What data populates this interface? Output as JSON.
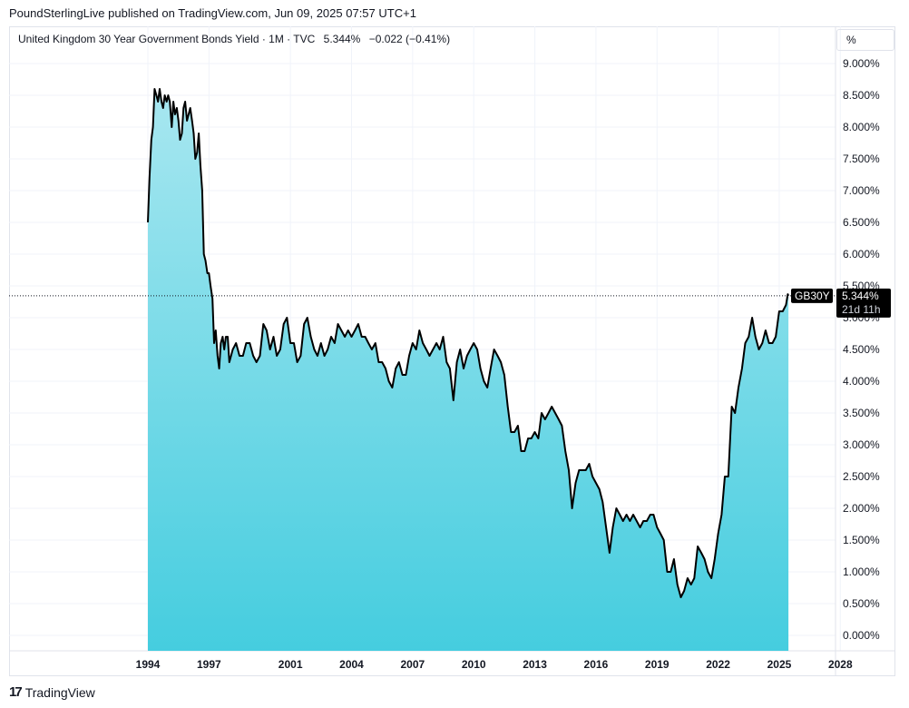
{
  "header": {
    "publisher_line": "PoundSterlingLive published on TradingView.com, Jun 09, 2025 07:57 UTC+1"
  },
  "legend": {
    "title": "United Kingdom 30 Year Government Bonds Yield · 1M · TVC",
    "last": "5.344%",
    "change": "−0.022 (−0.41%)"
  },
  "axis_unit": "%",
  "price_tag": {
    "symbol": "GB30Y",
    "value": "5.344%",
    "countdown": "21d 11h"
  },
  "footer": {
    "brand": "TradingView",
    "icon": "tradingview-logo-icon"
  },
  "colors": {
    "line": "#000000",
    "fill_top": "#a8e7f0",
    "fill_bottom": "#45cddf",
    "tag": "#000000"
  },
  "chart_data": {
    "type": "area",
    "x_ticks": [
      "1994",
      "1997",
      "2001",
      "2004",
      "2007",
      "2010",
      "2013",
      "2016",
      "2019",
      "2022",
      "2025",
      "2028"
    ],
    "y_ticks": [
      "0.000%",
      "0.500%",
      "1.000%",
      "1.500%",
      "2.000%",
      "2.500%",
      "3.000%",
      "3.500%",
      "4.000%",
      "4.500%",
      "5.000%",
      "5.500%",
      "6.000%",
      "6.500%",
      "7.000%",
      "7.500%",
      "8.000%",
      "8.500%",
      "9.000%"
    ],
    "ylim": [
      0,
      9
    ],
    "xlim": [
      1993.2,
      2029.0
    ],
    "grid": true,
    "current_value": 5.344,
    "series": [
      {
        "points": [
          [
            1994.0,
            6.5
          ],
          [
            1994.08,
            7.2
          ],
          [
            1994.17,
            7.8
          ],
          [
            1994.25,
            8.0
          ],
          [
            1994.33,
            8.6
          ],
          [
            1994.42,
            8.5
          ],
          [
            1994.5,
            8.4
          ],
          [
            1994.58,
            8.6
          ],
          [
            1994.67,
            8.4
          ],
          [
            1994.75,
            8.3
          ],
          [
            1994.83,
            8.5
          ],
          [
            1994.92,
            8.4
          ],
          [
            1995.0,
            8.5
          ],
          [
            1995.08,
            8.4
          ],
          [
            1995.17,
            8.0
          ],
          [
            1995.25,
            8.4
          ],
          [
            1995.33,
            8.2
          ],
          [
            1995.42,
            8.3
          ],
          [
            1995.5,
            8.1
          ],
          [
            1995.58,
            7.8
          ],
          [
            1995.67,
            7.9
          ],
          [
            1995.75,
            8.3
          ],
          [
            1995.83,
            8.4
          ],
          [
            1995.92,
            8.1
          ],
          [
            1996.0,
            8.2
          ],
          [
            1996.08,
            8.3
          ],
          [
            1996.17,
            8.1
          ],
          [
            1996.25,
            7.9
          ],
          [
            1996.33,
            7.5
          ],
          [
            1996.42,
            7.6
          ],
          [
            1996.5,
            7.9
          ],
          [
            1996.58,
            7.4
          ],
          [
            1996.67,
            7.0
          ],
          [
            1996.75,
            6.0
          ],
          [
            1996.83,
            5.9
          ],
          [
            1996.92,
            5.7
          ],
          [
            1997.0,
            5.7
          ],
          [
            1997.08,
            5.5
          ],
          [
            1997.17,
            5.3
          ],
          [
            1997.25,
            4.6
          ],
          [
            1997.33,
            4.8
          ],
          [
            1997.42,
            4.4
          ],
          [
            1997.5,
            4.2
          ],
          [
            1997.58,
            4.6
          ],
          [
            1997.67,
            4.7
          ],
          [
            1997.75,
            4.5
          ],
          [
            1997.83,
            4.7
          ],
          [
            1997.92,
            4.7
          ],
          [
            1998.0,
            4.3
          ],
          [
            1998.17,
            4.5
          ],
          [
            1998.33,
            4.6
          ],
          [
            1998.5,
            4.4
          ],
          [
            1998.67,
            4.4
          ],
          [
            1998.83,
            4.6
          ],
          [
            1999.0,
            4.6
          ],
          [
            1999.17,
            4.4
          ],
          [
            1999.33,
            4.3
          ],
          [
            1999.5,
            4.4
          ],
          [
            1999.67,
            4.9
          ],
          [
            1999.83,
            4.8
          ],
          [
            2000.0,
            4.5
          ],
          [
            2000.17,
            4.7
          ],
          [
            2000.33,
            4.4
          ],
          [
            2000.5,
            4.5
          ],
          [
            2000.67,
            4.9
          ],
          [
            2000.83,
            5.0
          ],
          [
            2001.0,
            4.6
          ],
          [
            2001.17,
            4.6
          ],
          [
            2001.33,
            4.3
          ],
          [
            2001.5,
            4.4
          ],
          [
            2001.67,
            4.9
          ],
          [
            2001.83,
            5.0
          ],
          [
            2002.0,
            4.7
          ],
          [
            2002.17,
            4.5
          ],
          [
            2002.33,
            4.4
          ],
          [
            2002.5,
            4.6
          ],
          [
            2002.67,
            4.4
          ],
          [
            2002.83,
            4.5
          ],
          [
            2003.0,
            4.7
          ],
          [
            2003.17,
            4.6
          ],
          [
            2003.33,
            4.9
          ],
          [
            2003.5,
            4.8
          ],
          [
            2003.67,
            4.7
          ],
          [
            2003.83,
            4.8
          ],
          [
            2004.0,
            4.7
          ],
          [
            2004.17,
            4.8
          ],
          [
            2004.33,
            4.9
          ],
          [
            2004.5,
            4.7
          ],
          [
            2004.67,
            4.7
          ],
          [
            2004.83,
            4.6
          ],
          [
            2005.0,
            4.5
          ],
          [
            2005.17,
            4.6
          ],
          [
            2005.33,
            4.3
          ],
          [
            2005.5,
            4.3
          ],
          [
            2005.67,
            4.2
          ],
          [
            2005.83,
            4.0
          ],
          [
            2006.0,
            3.9
          ],
          [
            2006.17,
            4.2
          ],
          [
            2006.33,
            4.3
          ],
          [
            2006.5,
            4.1
          ],
          [
            2006.67,
            4.1
          ],
          [
            2006.83,
            4.4
          ],
          [
            2007.0,
            4.6
          ],
          [
            2007.17,
            4.5
          ],
          [
            2007.33,
            4.8
          ],
          [
            2007.5,
            4.6
          ],
          [
            2007.67,
            4.5
          ],
          [
            2007.83,
            4.4
          ],
          [
            2008.0,
            4.5
          ],
          [
            2008.17,
            4.6
          ],
          [
            2008.33,
            4.5
          ],
          [
            2008.5,
            4.7
          ],
          [
            2008.67,
            4.3
          ],
          [
            2008.83,
            4.2
          ],
          [
            2009.0,
            3.7
          ],
          [
            2009.17,
            4.3
          ],
          [
            2009.33,
            4.5
          ],
          [
            2009.5,
            4.2
          ],
          [
            2009.67,
            4.4
          ],
          [
            2009.83,
            4.5
          ],
          [
            2010.0,
            4.6
          ],
          [
            2010.17,
            4.5
          ],
          [
            2010.33,
            4.2
          ],
          [
            2010.5,
            4.0
          ],
          [
            2010.67,
            3.9
          ],
          [
            2010.83,
            4.2
          ],
          [
            2011.0,
            4.5
          ],
          [
            2011.17,
            4.4
          ],
          [
            2011.33,
            4.3
          ],
          [
            2011.5,
            4.1
          ],
          [
            2011.67,
            3.6
          ],
          [
            2011.83,
            3.2
          ],
          [
            2012.0,
            3.2
          ],
          [
            2012.17,
            3.3
          ],
          [
            2012.33,
            2.9
          ],
          [
            2012.5,
            2.9
          ],
          [
            2012.67,
            3.1
          ],
          [
            2012.83,
            3.1
          ],
          [
            2013.0,
            3.2
          ],
          [
            2013.17,
            3.1
          ],
          [
            2013.33,
            3.5
          ],
          [
            2013.5,
            3.4
          ],
          [
            2013.67,
            3.5
          ],
          [
            2013.83,
            3.6
          ],
          [
            2014.0,
            3.5
          ],
          [
            2014.17,
            3.4
          ],
          [
            2014.33,
            3.3
          ],
          [
            2014.5,
            2.9
          ],
          [
            2014.67,
            2.6
          ],
          [
            2014.83,
            2.0
          ],
          [
            2015.0,
            2.4
          ],
          [
            2015.17,
            2.6
          ],
          [
            2015.33,
            2.6
          ],
          [
            2015.5,
            2.6
          ],
          [
            2015.67,
            2.7
          ],
          [
            2015.83,
            2.5
          ],
          [
            2016.0,
            2.4
          ],
          [
            2016.17,
            2.3
          ],
          [
            2016.33,
            2.1
          ],
          [
            2016.5,
            1.7
          ],
          [
            2016.67,
            1.3
          ],
          [
            2016.83,
            1.7
          ],
          [
            2017.0,
            2.0
          ],
          [
            2017.17,
            1.9
          ],
          [
            2017.33,
            1.8
          ],
          [
            2017.5,
            1.9
          ],
          [
            2017.67,
            1.8
          ],
          [
            2017.83,
            1.9
          ],
          [
            2018.0,
            1.8
          ],
          [
            2018.17,
            1.7
          ],
          [
            2018.33,
            1.8
          ],
          [
            2018.5,
            1.8
          ],
          [
            2018.67,
            1.9
          ],
          [
            2018.83,
            1.9
          ],
          [
            2019.0,
            1.7
          ],
          [
            2019.17,
            1.6
          ],
          [
            2019.33,
            1.5
          ],
          [
            2019.5,
            1.0
          ],
          [
            2019.67,
            1.0
          ],
          [
            2019.83,
            1.2
          ],
          [
            2020.0,
            0.8
          ],
          [
            2020.17,
            0.6
          ],
          [
            2020.33,
            0.7
          ],
          [
            2020.5,
            0.9
          ],
          [
            2020.67,
            0.8
          ],
          [
            2020.83,
            0.9
          ],
          [
            2021.0,
            1.4
          ],
          [
            2021.17,
            1.3
          ],
          [
            2021.33,
            1.2
          ],
          [
            2021.5,
            1.0
          ],
          [
            2021.67,
            0.9
          ],
          [
            2021.83,
            1.2
          ],
          [
            2022.0,
            1.6
          ],
          [
            2022.17,
            1.9
          ],
          [
            2022.33,
            2.5
          ],
          [
            2022.5,
            2.5
          ],
          [
            2022.67,
            3.6
          ],
          [
            2022.83,
            3.5
          ],
          [
            2023.0,
            3.9
          ],
          [
            2023.17,
            4.2
          ],
          [
            2023.33,
            4.6
          ],
          [
            2023.5,
            4.7
          ],
          [
            2023.67,
            5.0
          ],
          [
            2023.83,
            4.7
          ],
          [
            2024.0,
            4.5
          ],
          [
            2024.17,
            4.6
          ],
          [
            2024.33,
            4.8
          ],
          [
            2024.5,
            4.6
          ],
          [
            2024.67,
            4.6
          ],
          [
            2024.83,
            4.7
          ],
          [
            2025.0,
            5.1
          ],
          [
            2025.17,
            5.1
          ],
          [
            2025.33,
            5.2
          ],
          [
            2025.42,
            5.37
          ],
          [
            2025.45,
            5.344
          ]
        ]
      }
    ]
  }
}
